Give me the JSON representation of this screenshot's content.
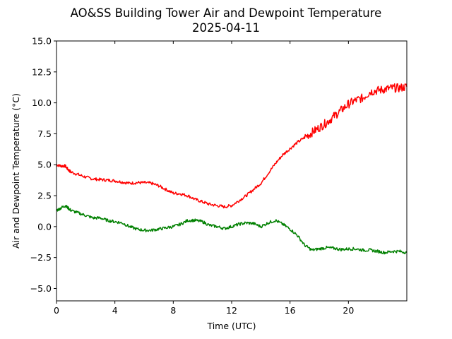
{
  "chart_data": {
    "type": "line",
    "title": "AO&SS Building Tower Air and Dewpoint Temperature",
    "subtitle": "2025-04-11",
    "xlabel": "Time (UTC)",
    "ylabel": "Air and Dewpoint Temperature (°C)",
    "xlim": [
      0,
      24
    ],
    "ylim": [
      -6,
      15
    ],
    "xticks": [
      0,
      4,
      8,
      12,
      16,
      20
    ],
    "yticks": [
      -5.0,
      -2.5,
      0.0,
      2.5,
      5.0,
      7.5,
      10.0,
      12.5,
      15.0
    ],
    "xtick_labels": [
      "0",
      "4",
      "8",
      "12",
      "16",
      "20"
    ],
    "ytick_labels": [
      "−5.0",
      "−2.5",
      "0.0",
      "2.5",
      "5.0",
      "7.5",
      "10.0",
      "12.5",
      "15.0"
    ],
    "grid": false,
    "series": [
      {
        "color": "#ff0000",
        "x": [
          0,
          0.3,
          0.6,
          0.8,
          1.0,
          1.5,
          2.0,
          2.5,
          3.0,
          3.5,
          4.0,
          4.5,
          5.0,
          5.5,
          6.0,
          6.5,
          7.0,
          7.5,
          8.0,
          8.5,
          9.0,
          9.5,
          10.0,
          10.5,
          11.0,
          11.5,
          12.0,
          12.5,
          13.0,
          13.5,
          14.0,
          14.5,
          15.0,
          15.5,
          16.0,
          16.5,
          17.0,
          17.5,
          18.0,
          18.5,
          19.0,
          19.5,
          20.0,
          20.5,
          21.0,
          21.5,
          22.0,
          22.5,
          23.0,
          23.5,
          24.0
        ],
        "values": [
          5.0,
          4.9,
          4.9,
          4.6,
          4.4,
          4.2,
          4.0,
          3.85,
          3.8,
          3.75,
          3.7,
          3.6,
          3.5,
          3.55,
          3.55,
          3.5,
          3.3,
          3.0,
          2.7,
          2.65,
          2.5,
          2.2,
          2.0,
          1.8,
          1.7,
          1.6,
          1.7,
          2.1,
          2.5,
          3.0,
          3.5,
          4.3,
          5.1,
          5.8,
          6.3,
          6.8,
          7.2,
          7.6,
          8.0,
          8.4,
          8.9,
          9.4,
          9.9,
          10.2,
          10.4,
          10.9,
          11.0,
          11.1,
          11.2,
          11.2,
          11.3
        ]
      },
      {
        "color": "#008000",
        "x": [
          0,
          0.3,
          0.6,
          0.8,
          1.0,
          1.5,
          2.0,
          2.5,
          3.0,
          3.5,
          4.0,
          4.5,
          5.0,
          5.5,
          6.0,
          6.5,
          7.0,
          7.5,
          8.0,
          8.5,
          9.0,
          9.5,
          10.0,
          10.5,
          11.0,
          11.5,
          12.0,
          12.5,
          13.0,
          13.5,
          14.0,
          14.5,
          15.0,
          15.5,
          16.0,
          16.5,
          17.0,
          17.5,
          18.0,
          18.5,
          19.0,
          19.5,
          20.0,
          20.5,
          21.0,
          21.5,
          22.0,
          22.5,
          23.0,
          23.5,
          24.0
        ],
        "values": [
          1.3,
          1.5,
          1.7,
          1.5,
          1.3,
          1.1,
          0.9,
          0.7,
          0.7,
          0.5,
          0.4,
          0.3,
          0.0,
          -0.2,
          -0.3,
          -0.3,
          -0.2,
          -0.1,
          0.0,
          0.2,
          0.5,
          0.5,
          0.4,
          0.1,
          0.0,
          -0.15,
          0.0,
          0.2,
          0.3,
          0.25,
          0.0,
          0.3,
          0.5,
          0.2,
          -0.2,
          -0.7,
          -1.5,
          -1.9,
          -1.8,
          -1.7,
          -1.75,
          -1.85,
          -1.8,
          -1.8,
          -1.9,
          -1.9,
          -2.0,
          -2.1,
          -2.0,
          -2.0,
          -2.1
        ]
      }
    ]
  }
}
